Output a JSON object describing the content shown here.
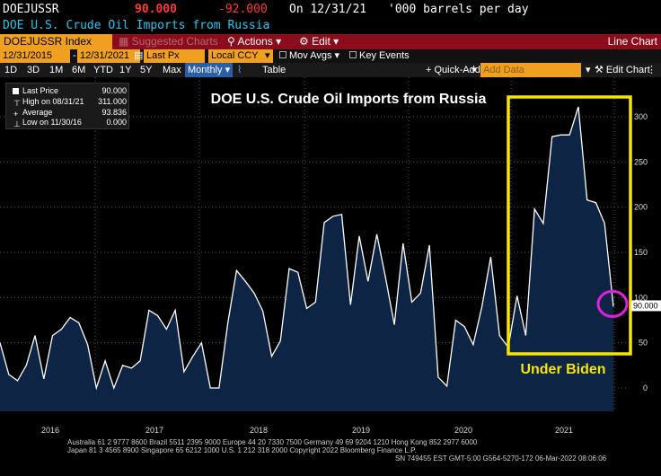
{
  "header": {
    "ticker": "DOEJUSSR",
    "last_value": "90.000",
    "change": "-92.000",
    "date_label": "On 12/31/21",
    "units": "'000 barrels per day",
    "description": "DOE U.S. Crude Oil Imports from Russia"
  },
  "toolbar": {
    "security": "DOEJUSSR Index",
    "suggested_charts": "Suggested Charts",
    "actions": "Actions",
    "edit": "Edit",
    "chart_type": "Line Chart"
  },
  "settings": {
    "start_date": "12/31/2015",
    "end_date": "12/31/2021",
    "field": "Last Px",
    "currency": "Local CCY",
    "mov_avgs": "Mov Avgs",
    "key_events": "Key Events"
  },
  "periods": {
    "items": [
      "1D",
      "3D",
      "1M",
      "6M",
      "YTD",
      "1Y",
      "5Y",
      "Max"
    ],
    "frequency": "Monthly",
    "table": "Table",
    "quick_add": "+ Quick-Add",
    "add_data_placeholder": "Add Data",
    "edit_chart": "Edit Chart"
  },
  "legend": {
    "last_price_label": "Last Price",
    "last_price_value": "90.000",
    "high_label": "High on 08/31/21",
    "high_value": "311.000",
    "average_label": "Average",
    "average_value": "93.836",
    "low_label": "Low on 11/30/16",
    "low_value": "0.000"
  },
  "chart_data": {
    "type": "area",
    "title": "DOE U.S. Crude Oil Imports from Russia",
    "annotation": "Under Biden",
    "last_value_label": "90.000",
    "y_range": [
      -30,
      340
    ],
    "y_ticks": [
      0,
      50,
      100,
      150,
      200,
      250,
      300
    ],
    "x_tick_labels": [
      "2016",
      "2017",
      "2018",
      "2019",
      "2020",
      "2021"
    ],
    "colors": {
      "line": "#ffffff",
      "fill": "#0d2444",
      "highlight_box": "#f5e600",
      "circle": "#e020e0"
    },
    "series": [
      {
        "values": [
          50,
          15,
          8,
          25,
          58,
          10,
          58,
          65,
          78,
          72,
          48,
          0,
          30,
          0,
          25,
          22,
          30,
          86,
          80,
          65,
          86,
          18,
          35,
          50,
          0,
          0,
          72,
          130,
          118,
          105,
          85,
          35,
          52,
          132,
          128,
          88,
          95,
          183,
          190,
          192,
          92,
          168,
          118,
          170,
          122,
          70,
          160,
          95,
          105,
          158,
          12,
          2,
          75,
          68,
          48,
          90,
          145,
          58,
          45,
          102,
          58,
          198,
          182,
          278,
          280,
          280,
          311,
          208,
          205,
          182,
          90
        ]
      }
    ]
  },
  "footer": {
    "line1": "Australia 61 2 9777 8600 Brazil 5511 2395 9000 Europe 44 20 7330 7500 Germany 49 69 9204 1210 Hong Kong 852 2977 6000",
    "line2": "Japan 81 3 4565 8900        Singapore 65 6212 1000        U.S. 1 212 318 2000        Copyright 2022 Bloomberg Finance L.P.",
    "line3": "SN 749455 EST  GMT-5:00 G564-5270-172 06-Mar-2022 08:06:06"
  }
}
